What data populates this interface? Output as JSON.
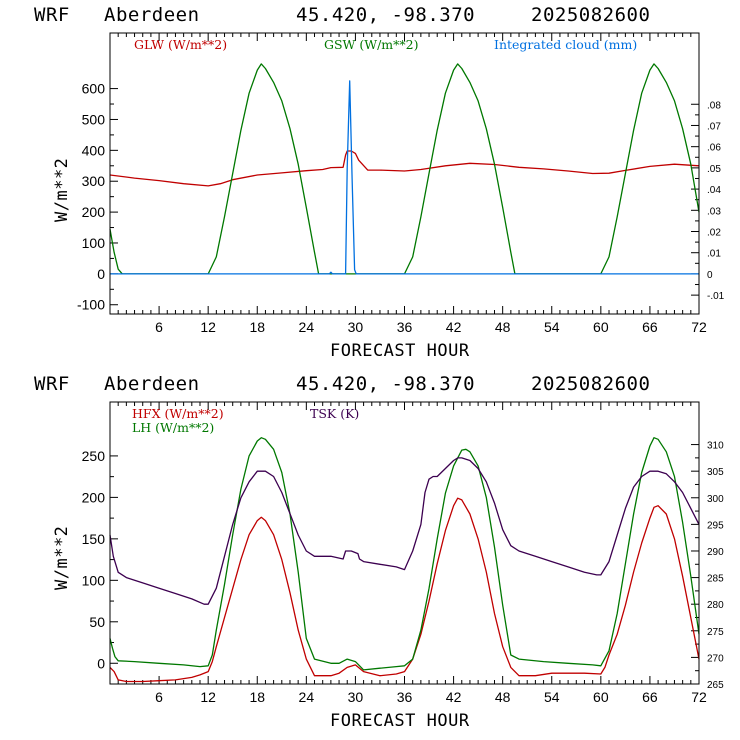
{
  "charts_header": [
    {
      "model": "WRF",
      "station": "Aberdeen",
      "coords": "45.420, -98.370",
      "run": "2025082600"
    },
    {
      "model": "WRF",
      "station": "Aberdeen",
      "coords": "45.420, -98.370",
      "run": "2025082600"
    }
  ],
  "colors": {
    "red": "#c00000",
    "green": "#007800",
    "blue": "#0070e0",
    "purple": "#3c0050",
    "frame": "#000000"
  },
  "chart_data": [
    {
      "type": "line",
      "xlabel": "FORECAST HOUR",
      "ylabel": "W/m**2",
      "xlim": [
        0,
        72
      ],
      "ylim": [
        -130,
        780
      ],
      "y2lim": [
        -0.0189,
        0.1136
      ],
      "xticks": [
        6,
        12,
        18,
        24,
        30,
        36,
        42,
        48,
        54,
        60,
        66,
        72
      ],
      "yticks": [
        -100,
        0,
        100,
        200,
        300,
        400,
        500,
        600
      ],
      "y2ticks": [
        "-.01",
        "0",
        ".01",
        ".02",
        ".03",
        ".04",
        ".05",
        ".06",
        ".07",
        ".08"
      ],
      "y2tick_values": [
        -0.01,
        0,
        0.01,
        0.02,
        0.03,
        0.04,
        0.05,
        0.06,
        0.07,
        0.08
      ],
      "series": [
        {
          "name": "GLW (W/m**2)",
          "color": "#c00000",
          "axis": "left",
          "x": [
            0,
            3,
            6,
            9,
            12,
            13.5,
            15,
            18,
            21,
            24,
            26,
            27,
            28.5,
            28.8,
            29,
            29.5,
            30,
            30.4,
            31.5,
            33,
            36,
            38,
            41,
            44,
            47,
            50,
            53,
            56,
            59,
            61,
            63,
            66,
            69,
            72
          ],
          "y": [
            320,
            310,
            302,
            292,
            285,
            292,
            305,
            320,
            327,
            334,
            338,
            344,
            345,
            385,
            398,
            398,
            390,
            368,
            336,
            336,
            333,
            338,
            350,
            358,
            354,
            345,
            340,
            333,
            325,
            326,
            335,
            348,
            355,
            350
          ]
        },
        {
          "name": "GSW (W/m**2)",
          "color": "#007800",
          "axis": "left",
          "x": [
            0,
            0.5,
            1,
            1.5,
            12,
            13,
            14,
            15,
            16,
            17,
            18,
            18.5,
            19,
            20,
            21,
            22,
            23,
            24,
            25,
            25.5,
            36,
            37,
            38,
            39,
            40,
            41,
            42,
            42.5,
            43,
            44,
            45,
            46,
            47,
            48,
            49,
            49.5,
            60,
            61,
            62,
            63,
            64,
            65,
            66,
            66.5,
            67,
            68,
            69,
            70,
            71,
            72
          ],
          "y": [
            145,
            70,
            15,
            0,
            0,
            55,
            185,
            325,
            465,
            585,
            660,
            680,
            665,
            620,
            560,
            470,
            355,
            215,
            70,
            0,
            0,
            55,
            185,
            325,
            465,
            585,
            660,
            680,
            665,
            620,
            560,
            470,
            355,
            215,
            70,
            0,
            0,
            55,
            185,
            325,
            465,
            585,
            660,
            680,
            665,
            620,
            560,
            470,
            355,
            200
          ]
        },
        {
          "name": "Integrated cloud (mm)",
          "color": "#0070e0",
          "axis": "right",
          "x": [
            0,
            26.8,
            27,
            27.2,
            28.8,
            29,
            29.3,
            29.6,
            29.9,
            30.1,
            72
          ],
          "y": [
            0,
            0,
            0.0008,
            0,
            0,
            0.05,
            0.091,
            0.045,
            0.002,
            0,
            0
          ]
        }
      ]
    },
    {
      "type": "line",
      "xlabel": "FORECAST HOUR",
      "ylabel": "W/m**2",
      "xlim": [
        0,
        72
      ],
      "ylim": [
        -25,
        315
      ],
      "y2lim": [
        265,
        318
      ],
      "xticks": [
        6,
        12,
        18,
        24,
        30,
        36,
        42,
        48,
        54,
        60,
        66,
        72
      ],
      "yticks": [
        0,
        50,
        100,
        150,
        200,
        250
      ],
      "y2ticks": [
        "265",
        "270",
        "275",
        "280",
        "285",
        "290",
        "295",
        "300",
        "305",
        "310"
      ],
      "y2tick_values": [
        265,
        270,
        275,
        280,
        285,
        290,
        295,
        300,
        305,
        310
      ],
      "series": [
        {
          "name": "HFX (W/m**2)",
          "color": "#c00000",
          "axis": "left",
          "x": [
            0,
            0.5,
            1,
            2,
            4,
            6,
            8,
            10,
            11,
            12,
            12.5,
            13,
            14,
            15,
            16,
            17,
            18,
            18.5,
            19,
            20,
            21,
            22,
            23,
            24,
            25,
            27,
            28,
            29,
            30,
            31,
            33,
            35,
            36,
            37,
            38,
            39,
            40,
            41,
            42,
            42.5,
            43,
            44,
            45,
            46,
            47,
            48,
            49,
            50,
            52,
            54,
            56,
            58,
            60,
            60.5,
            61,
            62,
            63,
            64,
            65,
            66,
            66.5,
            67,
            68,
            69,
            70,
            71,
            72
          ],
          "y": [
            -5,
            -10,
            -20,
            -22,
            -22,
            -21,
            -20,
            -17,
            -14,
            -10,
            2,
            20,
            55,
            90,
            125,
            155,
            172,
            176,
            172,
            155,
            125,
            85,
            40,
            5,
            -15,
            -15,
            -12,
            -5,
            -2,
            -10,
            -15,
            -13,
            -10,
            5,
            35,
            75,
            120,
            160,
            190,
            199,
            197,
            180,
            150,
            110,
            60,
            20,
            -5,
            -15,
            -15,
            -12,
            -12,
            -12,
            -13,
            -5,
            10,
            35,
            70,
            110,
            145,
            175,
            188,
            190,
            180,
            150,
            105,
            55,
            5
          ]
        },
        {
          "name": "LH  (W/m**2)",
          "color": "#007800",
          "axis": "left",
          "x": [
            0,
            0.3,
            0.6,
            1,
            3,
            6,
            9,
            11,
            12,
            12.5,
            13,
            14,
            15,
            16,
            17,
            18,
            18.5,
            19,
            20,
            21,
            22,
            23,
            24,
            25,
            27,
            28,
            29,
            30,
            31,
            33,
            35,
            36,
            37,
            38,
            39,
            40,
            41,
            42,
            43,
            43.5,
            44,
            45,
            46,
            47,
            48,
            49,
            50,
            53,
            56,
            59,
            60,
            61,
            62,
            63,
            64,
            65,
            66,
            66.5,
            67,
            68,
            69,
            70,
            71,
            72
          ],
          "y": [
            30,
            18,
            8,
            3,
            2,
            0,
            -2,
            -4,
            -3,
            10,
            40,
            95,
            155,
            210,
            250,
            268,
            272,
            270,
            258,
            230,
            180,
            110,
            30,
            5,
            0,
            0,
            5,
            2,
            -8,
            -6,
            -4,
            -3,
            5,
            40,
            90,
            150,
            205,
            238,
            257,
            258,
            255,
            238,
            200,
            140,
            70,
            10,
            5,
            2,
            0,
            -2,
            -3,
            15,
            60,
            120,
            180,
            230,
            262,
            272,
            270,
            255,
            225,
            170,
            105,
            35
          ]
        },
        {
          "name": "TSK (K)",
          "color": "#3c0050",
          "axis": "right",
          "x": [
            0,
            0.4,
            1,
            2,
            4,
            6,
            8,
            10,
            11.5,
            12,
            13,
            14,
            15,
            16,
            17,
            18,
            18.5,
            19,
            20,
            21,
            22,
            23,
            24,
            25,
            27,
            28.5,
            28.8,
            29.5,
            30.3,
            30.5,
            31,
            33,
            35,
            36,
            37,
            38,
            38.5,
            39,
            39.5,
            40,
            41,
            42,
            42.5,
            43,
            44,
            45,
            46,
            47,
            48,
            49,
            50,
            52,
            54,
            56,
            58,
            59.5,
            60,
            61,
            62,
            63,
            64,
            65,
            66,
            67,
            68,
            69,
            70,
            71,
            72
          ],
          "y": [
            293,
            289,
            286,
            285,
            284,
            283,
            282,
            281,
            280,
            280,
            283,
            289,
            295,
            300,
            303,
            305,
            305,
            305,
            304,
            301,
            297,
            293,
            290,
            289,
            289,
            288.5,
            290,
            290,
            289.5,
            288.5,
            288,
            287.5,
            287,
            286.5,
            290,
            295,
            301,
            303.5,
            304,
            304,
            305.5,
            307,
            307.5,
            307.5,
            307,
            305.5,
            303,
            299,
            294,
            291,
            290,
            289,
            288,
            287,
            286,
            285.5,
            285.5,
            288,
            293,
            298,
            302,
            304,
            305,
            305,
            304.5,
            303,
            301,
            298,
            295
          ]
        }
      ]
    }
  ]
}
